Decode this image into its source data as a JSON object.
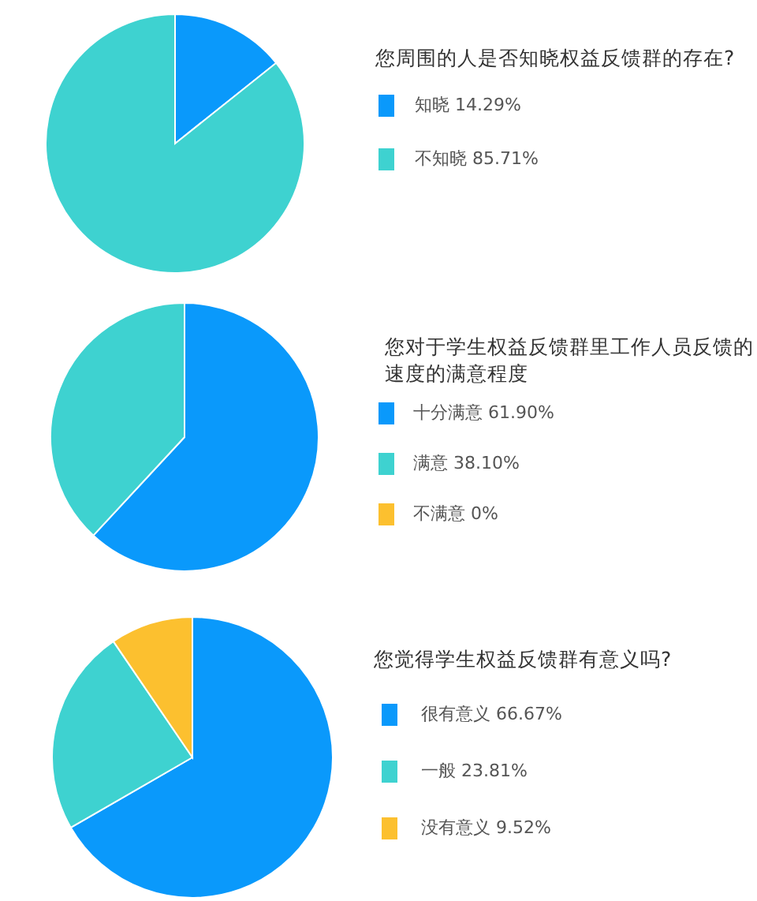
{
  "chart_data": [
    {
      "type": "pie",
      "title": "您周围的人是否知晓权益反馈群的存在?",
      "categories": [
        "知晓 14.29%",
        "不知晓 85.71%"
      ],
      "values": [
        14.29,
        85.71
      ],
      "colors": [
        "#0a99fb",
        "#3ed2d0"
      ],
      "legend": "right"
    },
    {
      "type": "pie",
      "title": "您对于学生权益反馈群里工作人员反馈的速度的满意程度",
      "categories": [
        "十分满意 61.90%",
        "满意 38.10%",
        "不满意 0%"
      ],
      "values": [
        61.9,
        38.1,
        0
      ],
      "colors": [
        "#0a99fb",
        "#3ed2d0",
        "#fcc02f"
      ],
      "legend": "right"
    },
    {
      "type": "pie",
      "title": "您觉得学生权益反馈群有意义吗?",
      "categories": [
        "很有意义 66.67%",
        "一般 23.81%",
        "没有意义 9.52%"
      ],
      "values": [
        66.67,
        23.81,
        9.52
      ],
      "colors": [
        "#0a99fb",
        "#3ed2d0",
        "#fcc02f"
      ],
      "legend": "right"
    }
  ]
}
